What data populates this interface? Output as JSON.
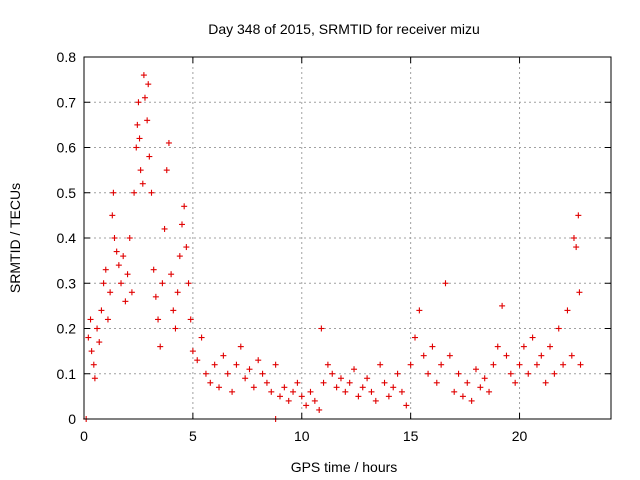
{
  "chart_data": {
    "type": "scatter",
    "title": "Day 348 of 2015, SRMTID for receiver mizu",
    "xlabel": "GPS time / hours",
    "ylabel": "SRMTID / TECUs",
    "xlim": [
      0,
      24.2
    ],
    "ylim": [
      0,
      0.8
    ],
    "x_ticks": [
      0,
      5,
      10,
      15,
      20
    ],
    "x_tick_labels": [
      "0",
      "5",
      "10",
      "15",
      "20"
    ],
    "y_ticks": [
      0,
      0.1,
      0.2,
      0.3,
      0.4,
      0.5,
      0.6,
      0.7,
      0.8
    ],
    "y_tick_labels": [
      "0",
      "0.1",
      "0.2",
      "0.3",
      "0.4",
      "0.5",
      "0.6",
      "0.7",
      "0.8"
    ],
    "grid": true,
    "marker": "plus",
    "color": "#e00000",
    "series": [
      {
        "name": "SRMTID",
        "points": [
          [
            0.1,
            0.0
          ],
          [
            8.8,
            0.0
          ],
          [
            0.2,
            0.18
          ],
          [
            0.3,
            0.22
          ],
          [
            0.35,
            0.15
          ],
          [
            0.45,
            0.12
          ],
          [
            0.5,
            0.09
          ],
          [
            0.6,
            0.2
          ],
          [
            0.7,
            0.17
          ],
          [
            0.8,
            0.24
          ],
          [
            0.9,
            0.3
          ],
          [
            1.0,
            0.33
          ],
          [
            1.1,
            0.22
          ],
          [
            1.2,
            0.28
          ],
          [
            1.3,
            0.45
          ],
          [
            1.35,
            0.5
          ],
          [
            1.4,
            0.4
          ],
          [
            1.5,
            0.37
          ],
          [
            1.6,
            0.34
          ],
          [
            1.7,
            0.3
          ],
          [
            1.8,
            0.36
          ],
          [
            1.9,
            0.26
          ],
          [
            2.0,
            0.32
          ],
          [
            2.1,
            0.4
          ],
          [
            2.2,
            0.28
          ],
          [
            2.3,
            0.5
          ],
          [
            2.4,
            0.6
          ],
          [
            2.45,
            0.65
          ],
          [
            2.5,
            0.7
          ],
          [
            2.55,
            0.62
          ],
          [
            2.6,
            0.55
          ],
          [
            2.7,
            0.52
          ],
          [
            2.75,
            0.76
          ],
          [
            2.8,
            0.71
          ],
          [
            2.9,
            0.66
          ],
          [
            2.95,
            0.74
          ],
          [
            3.0,
            0.58
          ],
          [
            3.1,
            0.5
          ],
          [
            3.2,
            0.33
          ],
          [
            3.3,
            0.27
          ],
          [
            3.4,
            0.22
          ],
          [
            3.5,
            0.16
          ],
          [
            3.6,
            0.3
          ],
          [
            3.7,
            0.42
          ],
          [
            3.8,
            0.55
          ],
          [
            3.9,
            0.61
          ],
          [
            4.0,
            0.32
          ],
          [
            4.1,
            0.24
          ],
          [
            4.2,
            0.2
          ],
          [
            4.3,
            0.28
          ],
          [
            4.4,
            0.36
          ],
          [
            4.5,
            0.43
          ],
          [
            4.6,
            0.47
          ],
          [
            4.7,
            0.38
          ],
          [
            4.8,
            0.3
          ],
          [
            4.9,
            0.22
          ],
          [
            5.0,
            0.15
          ],
          [
            5.2,
            0.13
          ],
          [
            5.4,
            0.18
          ],
          [
            5.6,
            0.1
          ],
          [
            5.8,
            0.08
          ],
          [
            6.0,
            0.12
          ],
          [
            6.2,
            0.07
          ],
          [
            6.4,
            0.14
          ],
          [
            6.6,
            0.1
          ],
          [
            6.8,
            0.06
          ],
          [
            7.0,
            0.12
          ],
          [
            7.2,
            0.16
          ],
          [
            7.4,
            0.09
          ],
          [
            7.6,
            0.11
          ],
          [
            7.8,
            0.07
          ],
          [
            8.0,
            0.13
          ],
          [
            8.2,
            0.1
          ],
          [
            8.4,
            0.08
          ],
          [
            8.6,
            0.06
          ],
          [
            8.8,
            0.12
          ],
          [
            9.0,
            0.05
          ],
          [
            9.2,
            0.07
          ],
          [
            9.4,
            0.04
          ],
          [
            9.6,
            0.06
          ],
          [
            9.8,
            0.08
          ],
          [
            10.0,
            0.05
          ],
          [
            10.2,
            0.03
          ],
          [
            10.4,
            0.06
          ],
          [
            10.6,
            0.04
          ],
          [
            10.8,
            0.02
          ],
          [
            10.9,
            0.2
          ],
          [
            11.0,
            0.08
          ],
          [
            11.2,
            0.12
          ],
          [
            11.4,
            0.1
          ],
          [
            11.6,
            0.07
          ],
          [
            11.8,
            0.09
          ],
          [
            12.0,
            0.06
          ],
          [
            12.2,
            0.08
          ],
          [
            12.4,
            0.11
          ],
          [
            12.6,
            0.05
          ],
          [
            12.8,
            0.07
          ],
          [
            13.0,
            0.09
          ],
          [
            13.2,
            0.06
          ],
          [
            13.4,
            0.04
          ],
          [
            13.6,
            0.12
          ],
          [
            13.8,
            0.08
          ],
          [
            14.0,
            0.05
          ],
          [
            14.2,
            0.07
          ],
          [
            14.4,
            0.1
          ],
          [
            14.6,
            0.06
          ],
          [
            14.8,
            0.03
          ],
          [
            15.0,
            0.12
          ],
          [
            15.2,
            0.18
          ],
          [
            15.4,
            0.24
          ],
          [
            15.6,
            0.14
          ],
          [
            15.8,
            0.1
          ],
          [
            16.0,
            0.16
          ],
          [
            16.2,
            0.08
          ],
          [
            16.4,
            0.12
          ],
          [
            16.6,
            0.3
          ],
          [
            16.8,
            0.14
          ],
          [
            17.0,
            0.06
          ],
          [
            17.2,
            0.1
          ],
          [
            17.4,
            0.05
          ],
          [
            17.6,
            0.08
          ],
          [
            17.8,
            0.04
          ],
          [
            18.0,
            0.11
          ],
          [
            18.2,
            0.07
          ],
          [
            18.4,
            0.09
          ],
          [
            18.6,
            0.06
          ],
          [
            18.8,
            0.12
          ],
          [
            19.0,
            0.16
          ],
          [
            19.2,
            0.25
          ],
          [
            19.4,
            0.14
          ],
          [
            19.6,
            0.1
          ],
          [
            19.8,
            0.08
          ],
          [
            20.0,
            0.12
          ],
          [
            20.2,
            0.16
          ],
          [
            20.4,
            0.1
          ],
          [
            20.6,
            0.18
          ],
          [
            20.8,
            0.12
          ],
          [
            21.0,
            0.14
          ],
          [
            21.2,
            0.08
          ],
          [
            21.4,
            0.16
          ],
          [
            21.6,
            0.1
          ],
          [
            21.8,
            0.2
          ],
          [
            22.0,
            0.12
          ],
          [
            22.2,
            0.24
          ],
          [
            22.4,
            0.14
          ],
          [
            22.5,
            0.4
          ],
          [
            22.6,
            0.38
          ],
          [
            22.7,
            0.45
          ],
          [
            22.75,
            0.28
          ],
          [
            22.8,
            0.12
          ]
        ]
      }
    ]
  }
}
